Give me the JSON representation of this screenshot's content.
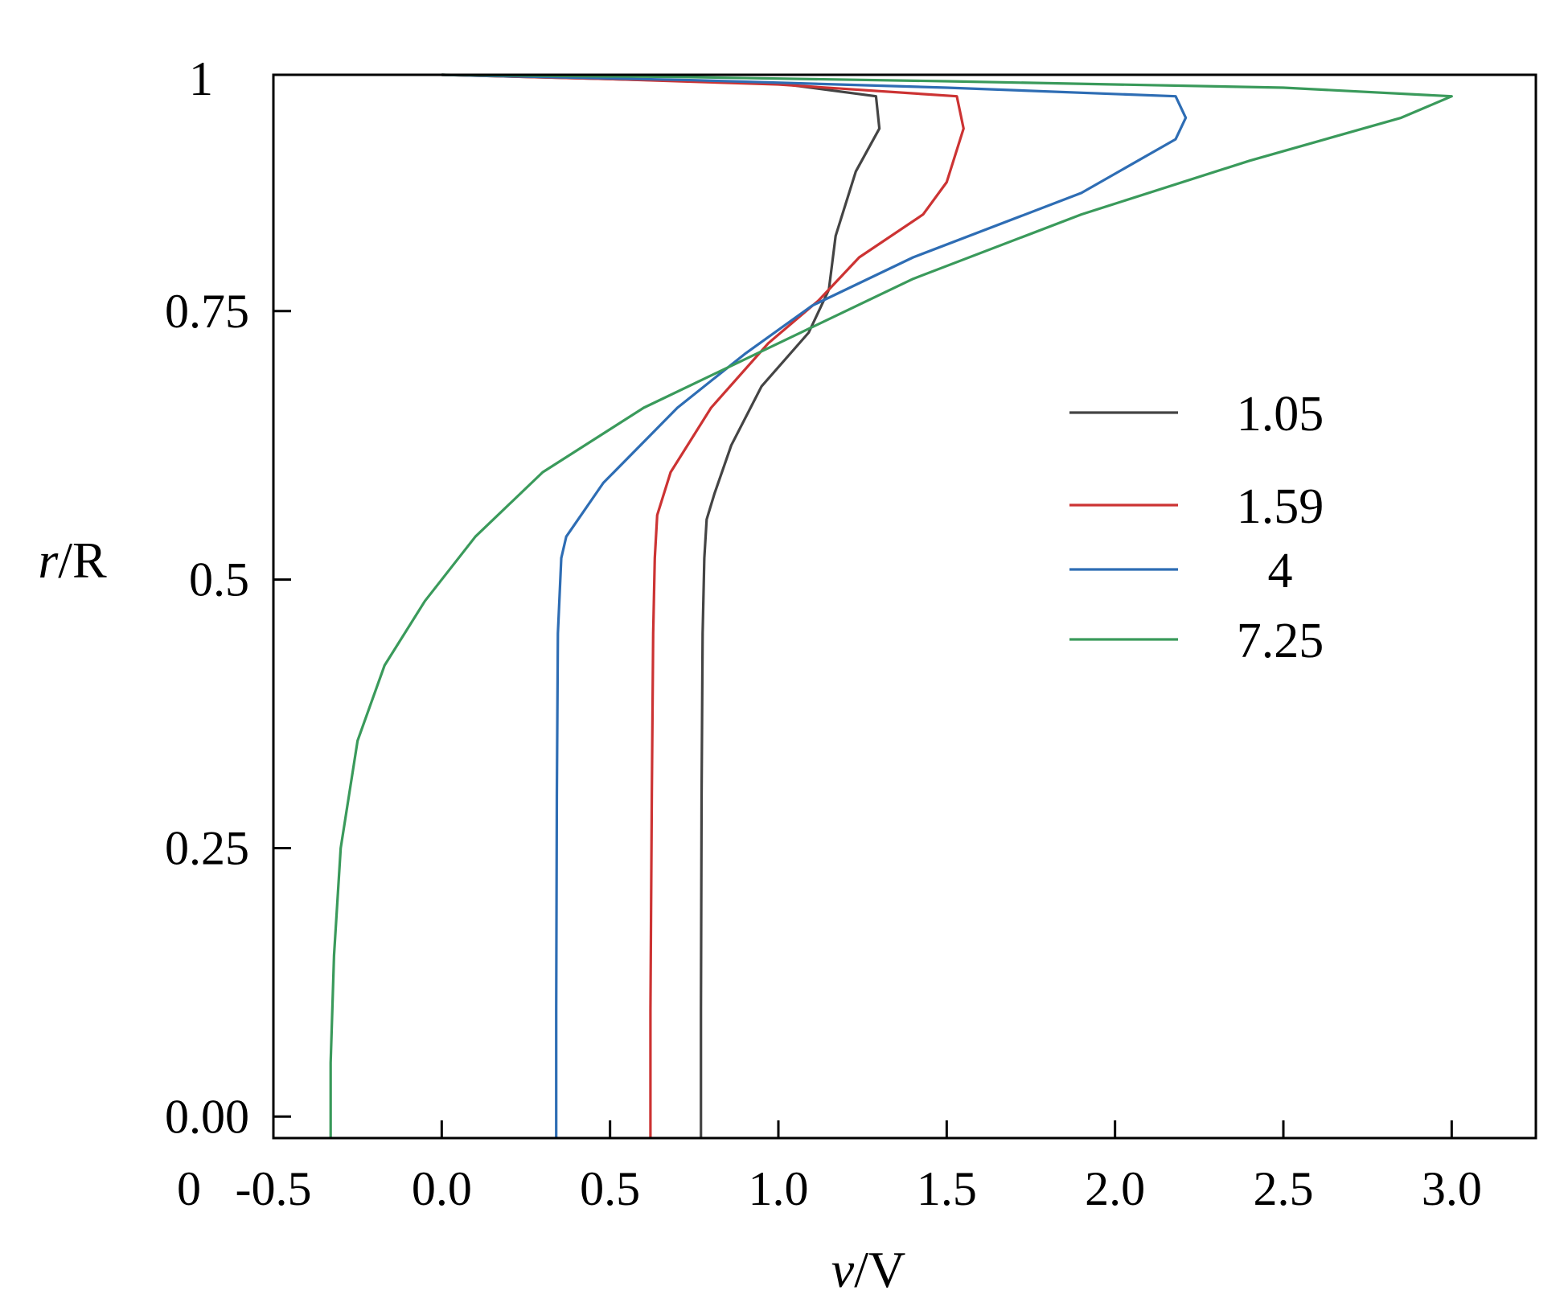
{
  "chart_data": {
    "type": "line",
    "title": "",
    "xlabel": {
      "var": "v",
      "rest": "/V"
    },
    "ylabel": {
      "var": "r",
      "rest": "/R"
    },
    "xlim": [
      -0.5,
      3.25
    ],
    "ylim": [
      -0.02,
      0.97
    ],
    "x_ticks": [
      -0.5,
      0.0,
      0.5,
      1.0,
      1.5,
      2.0,
      2.5,
      3.0
    ],
    "x_tick_labels": [
      "-0.5",
      "0.0",
      "0.5",
      "1.0",
      "1.5",
      "2.0",
      "2.5",
      "3.0"
    ],
    "y_ticks": [
      0.0,
      0.25,
      0.5,
      0.75
    ],
    "y_tick_labels": [
      "0.00",
      "0.25",
      "0.5",
      "0.75"
    ],
    "x_origin_label": "0",
    "y_top_label": "1",
    "grid": false,
    "legend_position": "right",
    "series": [
      {
        "name": "1.05",
        "color": "#444444",
        "points": [
          [
            0.77,
            -0.02
          ],
          [
            0.77,
            0.1
          ],
          [
            0.772,
            0.3
          ],
          [
            0.775,
            0.45
          ],
          [
            0.78,
            0.52
          ],
          [
            0.787,
            0.556
          ],
          [
            0.81,
            0.58
          ],
          [
            0.86,
            0.625
          ],
          [
            0.95,
            0.68
          ],
          [
            1.09,
            0.73
          ],
          [
            1.15,
            0.77
          ],
          [
            1.17,
            0.82
          ],
          [
            1.23,
            0.88
          ],
          [
            1.3,
            0.92
          ],
          [
            1.29,
            0.95
          ],
          [
            1.0,
            0.962
          ],
          [
            0.5,
            0.966
          ],
          [
            0.0,
            0.97
          ]
        ]
      },
      {
        "name": "1.59",
        "color": "#cc3333",
        "points": [
          [
            0.62,
            -0.02
          ],
          [
            0.62,
            0.1
          ],
          [
            0.624,
            0.3
          ],
          [
            0.628,
            0.45
          ],
          [
            0.633,
            0.52
          ],
          [
            0.64,
            0.56
          ],
          [
            0.68,
            0.6
          ],
          [
            0.8,
            0.66
          ],
          [
            0.97,
            0.72
          ],
          [
            1.12,
            0.76
          ],
          [
            1.24,
            0.8
          ],
          [
            1.43,
            0.84
          ],
          [
            1.5,
            0.87
          ],
          [
            1.55,
            0.92
          ],
          [
            1.53,
            0.95
          ],
          [
            1.0,
            0.961
          ],
          [
            0.5,
            0.966
          ],
          [
            0.0,
            0.97
          ]
        ]
      },
      {
        "name": "4",
        "color": "#2e6db4",
        "points": [
          [
            0.34,
            -0.02
          ],
          [
            0.34,
            0.1
          ],
          [
            0.342,
            0.3
          ],
          [
            0.345,
            0.45
          ],
          [
            0.355,
            0.52
          ],
          [
            0.37,
            0.54
          ],
          [
            0.48,
            0.59
          ],
          [
            0.7,
            0.66
          ],
          [
            0.9,
            0.71
          ],
          [
            1.1,
            0.755
          ],
          [
            1.4,
            0.8
          ],
          [
            1.9,
            0.86
          ],
          [
            2.18,
            0.91
          ],
          [
            2.21,
            0.93
          ],
          [
            2.18,
            0.95
          ],
          [
            1.5,
            0.958
          ],
          [
            0.75,
            0.965
          ],
          [
            0.0,
            0.97
          ]
        ]
      },
      {
        "name": "7.25",
        "color": "#3a9a5b",
        "points": [
          [
            -0.33,
            -0.02
          ],
          [
            -0.33,
            0.05
          ],
          [
            -0.32,
            0.15
          ],
          [
            -0.3,
            0.25
          ],
          [
            -0.25,
            0.35
          ],
          [
            -0.17,
            0.42
          ],
          [
            -0.05,
            0.48
          ],
          [
            0.1,
            0.54
          ],
          [
            0.3,
            0.6
          ],
          [
            0.6,
            0.66
          ],
          [
            1.0,
            0.72
          ],
          [
            1.4,
            0.78
          ],
          [
            1.9,
            0.84
          ],
          [
            2.4,
            0.89
          ],
          [
            2.85,
            0.93
          ],
          [
            3.0,
            0.95
          ],
          [
            2.5,
            0.958
          ],
          [
            1.5,
            0.964
          ],
          [
            0.7,
            0.968
          ],
          [
            0.0,
            0.97
          ]
        ]
      }
    ]
  }
}
